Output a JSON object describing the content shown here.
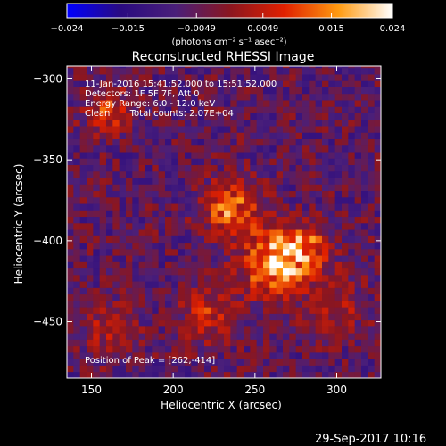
{
  "chart_data": {
    "type": "heatmap",
    "title": "Reconstructed RHESSI Image",
    "xlabel": "Heliocentric X (arcsec)",
    "ylabel": "Heliocentric Y (arcsec)",
    "xlim": [
      135,
      327
    ],
    "ylim": [
      -485,
      -292
    ],
    "x_ticks": [
      150,
      200,
      250,
      300
    ],
    "y_ticks": [
      -300,
      -350,
      -400,
      -450
    ],
    "colorbar": {
      "label": "(photons cm⁻² s⁻¹ asec⁻²)",
      "range": [
        -0.024,
        0.024
      ],
      "tick_labels": [
        "−0.024",
        "−0.015",
        "−0.0049",
        "0.0049",
        "0.015",
        "0.024"
      ],
      "tick_values": [
        -0.024,
        -0.015,
        -0.0049,
        0.0049,
        0.015,
        0.024
      ]
    },
    "annotations": [
      "11-Jan-2016 15:41:52.000 to 15:51:52.000",
      "Detectors: 1F 5F 7F, Att 0",
      "Energy Range: 6.0 - 12.0 keV",
      "Clean       Total counts: 2.07E+04"
    ],
    "peak_label": "Position of Peak = [262,-414]",
    "peak": [
      262,
      -414
    ],
    "sources": [
      {
        "x": 262,
        "y": -414,
        "amp": 0.024,
        "sigma": 14
      },
      {
        "x": 235,
        "y": -380,
        "amp": 0.018,
        "sigma": 12
      },
      {
        "x": 282,
        "y": -404,
        "amp": 0.014,
        "sigma": 11
      },
      {
        "x": 222,
        "y": -445,
        "amp": 0.011,
        "sigma": 13
      },
      {
        "x": 160,
        "y": -320,
        "amp": 0.013,
        "sigma": 10
      },
      {
        "x": 300,
        "y": -440,
        "amp": 0.009,
        "sigma": 12
      },
      {
        "x": 160,
        "y": -455,
        "amp": 0.009,
        "sigma": 12
      }
    ],
    "background": -0.006,
    "colormap": [
      "#0000ff",
      "#2a0b80",
      "#4a1f7a",
      "#8a1620",
      "#e02000",
      "#ff9a10",
      "#ffffff"
    ]
  },
  "footer": {
    "timestamp": "29-Sep-2017 10:16"
  }
}
